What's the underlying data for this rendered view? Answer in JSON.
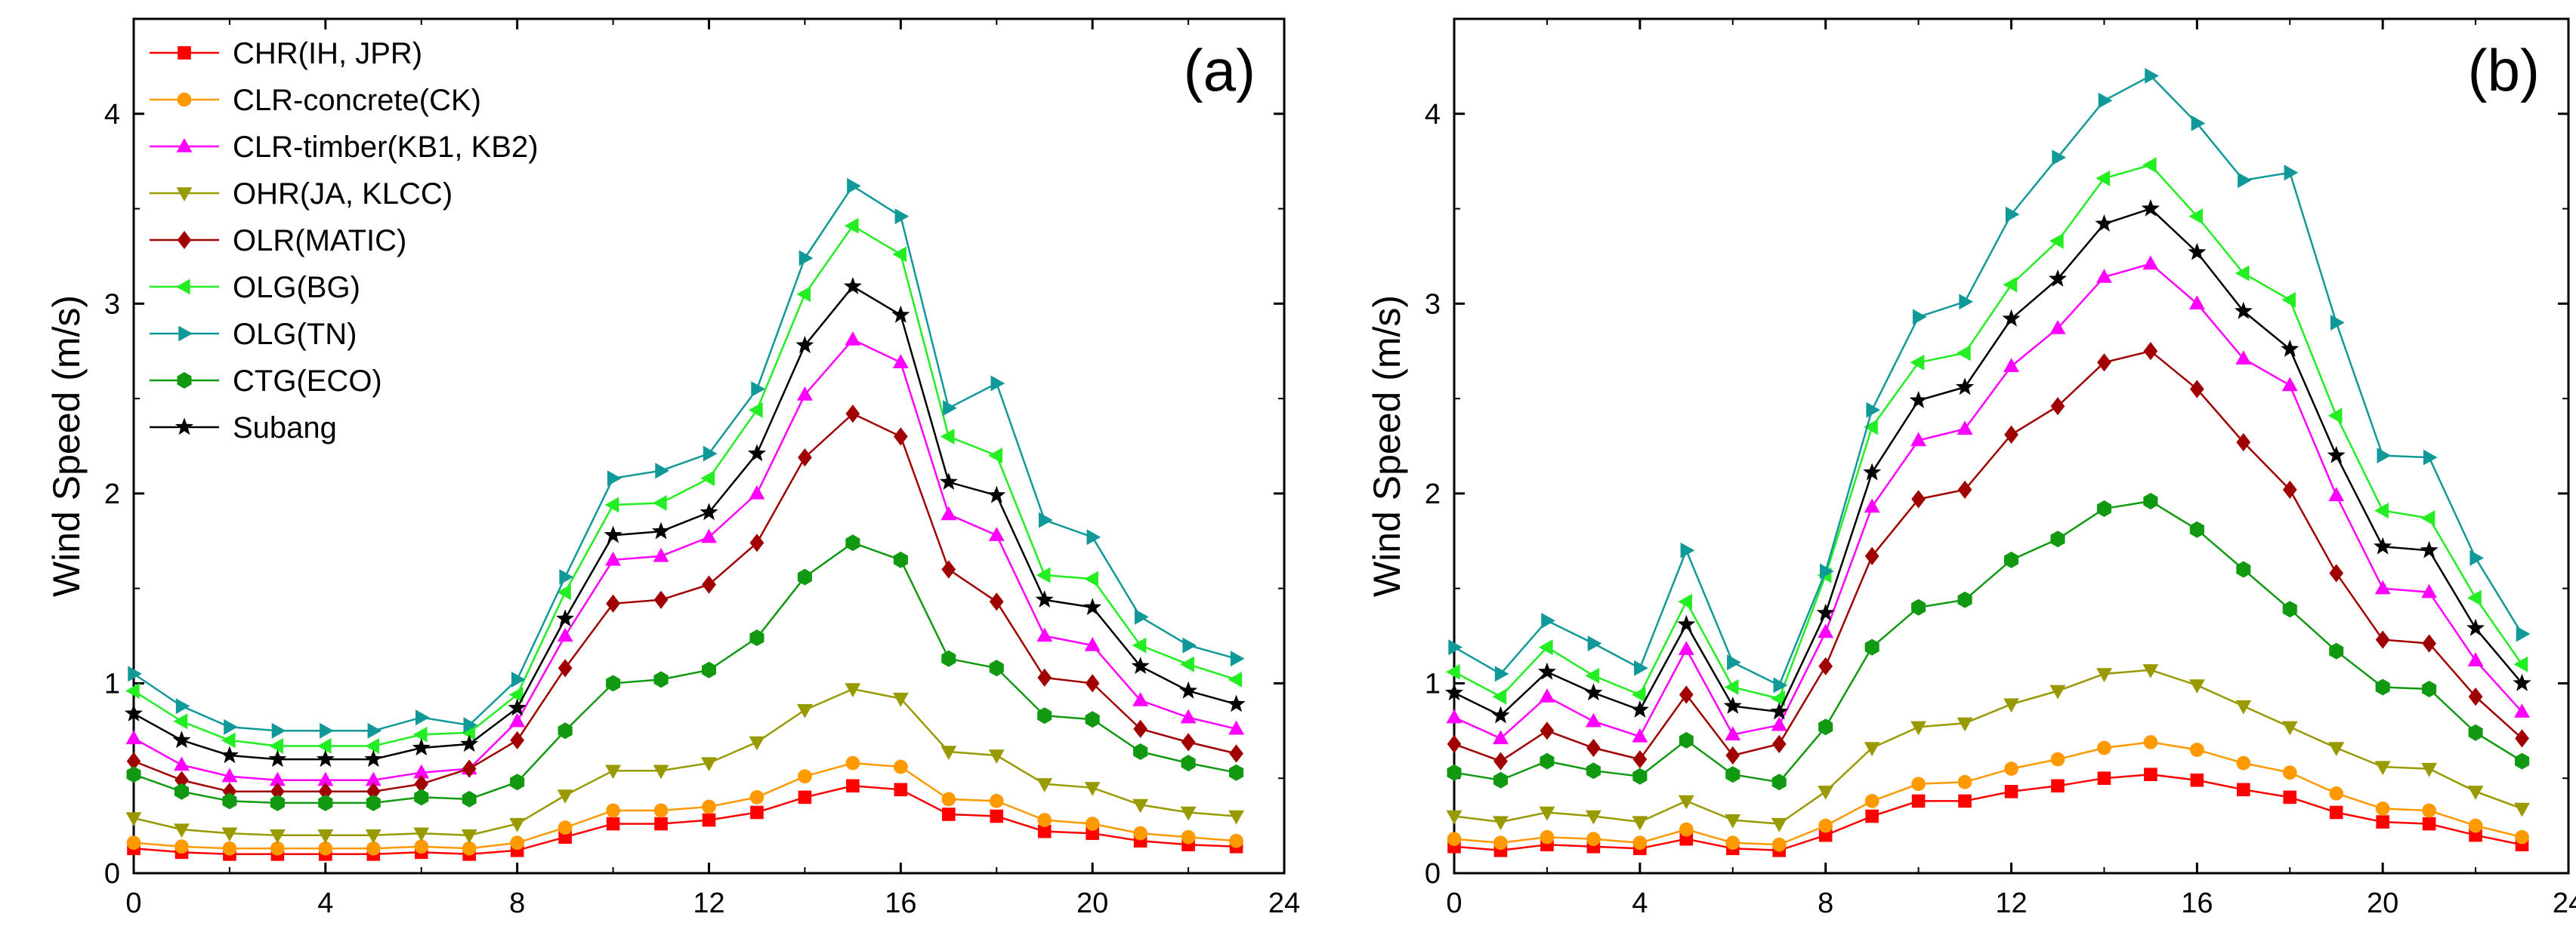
{
  "chart_data": [
    {
      "type": "line",
      "panel_label": "(a)",
      "ylabel": "Wind Speed (m/s)",
      "xlabel": "",
      "xlim": [
        0,
        24
      ],
      "ylim": [
        0,
        4.5
      ],
      "xticks": [
        0,
        4,
        8,
        12,
        16,
        20,
        24
      ],
      "yticks": [
        0,
        1,
        2,
        3,
        4
      ],
      "grid": false,
      "legend_position": "top-left",
      "x": [
        0,
        1,
        2,
        3,
        4,
        5,
        6,
        7,
        8,
        9,
        10,
        11,
        12,
        13,
        14,
        15,
        16,
        17,
        18,
        19,
        20,
        21,
        22,
        23
      ],
      "series": [
        {
          "name": "CHR(IH, JPR)",
          "color": "#ff0000",
          "marker": "square",
          "values": [
            0.13,
            0.11,
            0.1,
            0.1,
            0.1,
            0.1,
            0.11,
            0.1,
            0.12,
            0.19,
            0.26,
            0.26,
            0.28,
            0.32,
            0.4,
            0.46,
            0.44,
            0.31,
            0.3,
            0.22,
            0.21,
            0.17,
            0.15,
            0.14
          ]
        },
        {
          "name": "CLR-concrete(CK)",
          "color": "#ff9900",
          "marker": "circle",
          "values": [
            0.16,
            0.14,
            0.13,
            0.13,
            0.13,
            0.13,
            0.14,
            0.13,
            0.16,
            0.24,
            0.33,
            0.33,
            0.35,
            0.4,
            0.51,
            0.58,
            0.56,
            0.39,
            0.38,
            0.28,
            0.26,
            0.21,
            0.19,
            0.17
          ]
        },
        {
          "name": "CLR-timber(KB1, KB2)",
          "color": "#ff00ff",
          "marker": "triangle-up",
          "values": [
            0.71,
            0.57,
            0.51,
            0.49,
            0.49,
            0.49,
            0.53,
            0.55,
            0.8,
            1.25,
            1.65,
            1.67,
            1.77,
            2.0,
            2.52,
            2.81,
            2.69,
            1.89,
            1.78,
            1.25,
            1.2,
            0.91,
            0.82,
            0.76
          ]
        },
        {
          "name": "OHR(JA, KLCC)",
          "color": "#999900",
          "marker": "triangle-down",
          "values": [
            0.29,
            0.23,
            0.21,
            0.2,
            0.2,
            0.2,
            0.21,
            0.2,
            0.26,
            0.41,
            0.54,
            0.54,
            0.58,
            0.69,
            0.86,
            0.97,
            0.92,
            0.64,
            0.62,
            0.47,
            0.45,
            0.36,
            0.32,
            0.3
          ]
        },
        {
          "name": "OLR(MATIC)",
          "color": "#a00000",
          "marker": "diamond",
          "values": [
            0.59,
            0.49,
            0.43,
            0.43,
            0.43,
            0.43,
            0.47,
            0.55,
            0.7,
            1.08,
            1.42,
            1.44,
            1.52,
            1.74,
            2.19,
            2.42,
            2.3,
            1.6,
            1.43,
            1.03,
            1.0,
            0.76,
            0.69,
            0.63
          ]
        },
        {
          "name": "OLG(BG)",
          "color": "#22ee22",
          "marker": "triangle-left",
          "values": [
            0.96,
            0.8,
            0.7,
            0.67,
            0.67,
            0.67,
            0.73,
            0.74,
            0.94,
            1.48,
            1.94,
            1.95,
            2.08,
            2.44,
            3.05,
            3.41,
            3.26,
            2.3,
            2.2,
            1.57,
            1.55,
            1.2,
            1.1,
            1.02
          ]
        },
        {
          "name": "OLG(TN)",
          "color": "#119999",
          "marker": "triangle-right",
          "values": [
            1.05,
            0.88,
            0.77,
            0.75,
            0.75,
            0.75,
            0.82,
            0.78,
            1.02,
            1.56,
            2.08,
            2.12,
            2.21,
            2.55,
            3.24,
            3.62,
            3.46,
            2.45,
            2.58,
            1.86,
            1.77,
            1.35,
            1.2,
            1.13
          ]
        },
        {
          "name": "CTG(ECO)",
          "color": "#119911",
          "marker": "hexagon",
          "values": [
            0.52,
            0.43,
            0.38,
            0.37,
            0.37,
            0.37,
            0.4,
            0.39,
            0.48,
            0.75,
            1.0,
            1.02,
            1.07,
            1.24,
            1.56,
            1.74,
            1.65,
            1.13,
            1.08,
            0.83,
            0.81,
            0.64,
            0.58,
            0.53
          ]
        },
        {
          "name": "Subang",
          "color": "#000000",
          "marker": "star",
          "values": [
            0.84,
            0.7,
            0.62,
            0.6,
            0.6,
            0.6,
            0.66,
            0.68,
            0.87,
            1.34,
            1.78,
            1.8,
            1.9,
            2.21,
            2.78,
            3.09,
            2.94,
            2.06,
            1.99,
            1.44,
            1.4,
            1.09,
            0.96,
            0.89
          ]
        }
      ]
    },
    {
      "type": "line",
      "panel_label": "(b)",
      "ylabel": "Wind Speed (m/s)",
      "xlabel": "",
      "xlim": [
        0,
        24
      ],
      "ylim": [
        0,
        4.5
      ],
      "xticks": [
        0,
        4,
        8,
        12,
        16,
        20,
        24
      ],
      "yticks": [
        0,
        1,
        2,
        3,
        4
      ],
      "grid": false,
      "x": [
        0,
        1,
        2,
        3,
        4,
        5,
        6,
        7,
        8,
        9,
        10,
        11,
        12,
        13,
        14,
        15,
        16,
        17,
        18,
        19,
        20,
        21,
        22,
        23
      ],
      "series": [
        {
          "name": "CHR(IH, JPR)",
          "color": "#ff0000",
          "marker": "square",
          "values": [
            0.14,
            0.12,
            0.15,
            0.14,
            0.13,
            0.18,
            0.13,
            0.12,
            0.2,
            0.3,
            0.38,
            0.38,
            0.43,
            0.46,
            0.5,
            0.52,
            0.49,
            0.44,
            0.4,
            0.32,
            0.27,
            0.26,
            0.2,
            0.15
          ]
        },
        {
          "name": "CLR-concrete(CK)",
          "color": "#ff9900",
          "marker": "circle",
          "values": [
            0.18,
            0.16,
            0.19,
            0.18,
            0.16,
            0.23,
            0.16,
            0.15,
            0.25,
            0.38,
            0.47,
            0.48,
            0.55,
            0.6,
            0.66,
            0.69,
            0.65,
            0.58,
            0.53,
            0.42,
            0.34,
            0.33,
            0.25,
            0.19
          ]
        },
        {
          "name": "CLR-timber(KB1, KB2)",
          "color": "#ff00ff",
          "marker": "triangle-up",
          "values": [
            0.82,
            0.71,
            0.93,
            0.8,
            0.72,
            1.18,
            0.73,
            0.78,
            1.27,
            1.93,
            2.28,
            2.34,
            2.67,
            2.87,
            3.14,
            3.21,
            3.0,
            2.71,
            2.57,
            1.99,
            1.5,
            1.48,
            1.12,
            0.85
          ]
        },
        {
          "name": "OHR(JA, KLCC)",
          "color": "#999900",
          "marker": "triangle-down",
          "values": [
            0.3,
            0.27,
            0.32,
            0.3,
            0.27,
            0.38,
            0.28,
            0.26,
            0.43,
            0.66,
            0.77,
            0.79,
            0.89,
            0.96,
            1.05,
            1.07,
            0.99,
            0.88,
            0.77,
            0.66,
            0.56,
            0.55,
            0.43,
            0.34
          ]
        },
        {
          "name": "OLR(MATIC)",
          "color": "#a00000",
          "marker": "diamond",
          "values": [
            0.68,
            0.59,
            0.75,
            0.66,
            0.6,
            0.94,
            0.62,
            0.68,
            1.09,
            1.67,
            1.97,
            2.02,
            2.31,
            2.46,
            2.69,
            2.75,
            2.55,
            2.27,
            2.02,
            1.58,
            1.23,
            1.21,
            0.93,
            0.71
          ]
        },
        {
          "name": "OLG(BG)",
          "color": "#22ee22",
          "marker": "triangle-left",
          "values": [
            1.06,
            0.93,
            1.19,
            1.04,
            0.94,
            1.43,
            0.98,
            0.92,
            1.57,
            2.35,
            2.69,
            2.74,
            3.1,
            3.33,
            3.66,
            3.73,
            3.46,
            3.16,
            3.02,
            2.41,
            1.91,
            1.87,
            1.45,
            1.1
          ]
        },
        {
          "name": "OLG(TN)",
          "color": "#119999",
          "marker": "triangle-right",
          "values": [
            1.19,
            1.05,
            1.33,
            1.21,
            1.08,
            1.7,
            1.11,
            0.99,
            1.59,
            2.44,
            2.93,
            3.01,
            3.47,
            3.77,
            4.07,
            4.2,
            3.95,
            3.65,
            3.69,
            2.9,
            2.2,
            2.19,
            1.66,
            1.26
          ]
        },
        {
          "name": "CTG(ECO)",
          "color": "#119911",
          "marker": "hexagon",
          "values": [
            0.53,
            0.49,
            0.59,
            0.54,
            0.51,
            0.7,
            0.52,
            0.48,
            0.77,
            1.19,
            1.4,
            1.44,
            1.65,
            1.76,
            1.92,
            1.96,
            1.81,
            1.6,
            1.39,
            1.17,
            0.98,
            0.97,
            0.74,
            0.59
          ]
        },
        {
          "name": "Subang",
          "color": "#000000",
          "marker": "star",
          "values": [
            0.95,
            0.83,
            1.06,
            0.95,
            0.86,
            1.31,
            0.88,
            0.85,
            1.37,
            2.11,
            2.49,
            2.56,
            2.92,
            3.13,
            3.42,
            3.5,
            3.27,
            2.96,
            2.76,
            2.2,
            1.72,
            1.7,
            1.29,
            1.0
          ]
        }
      ]
    }
  ]
}
